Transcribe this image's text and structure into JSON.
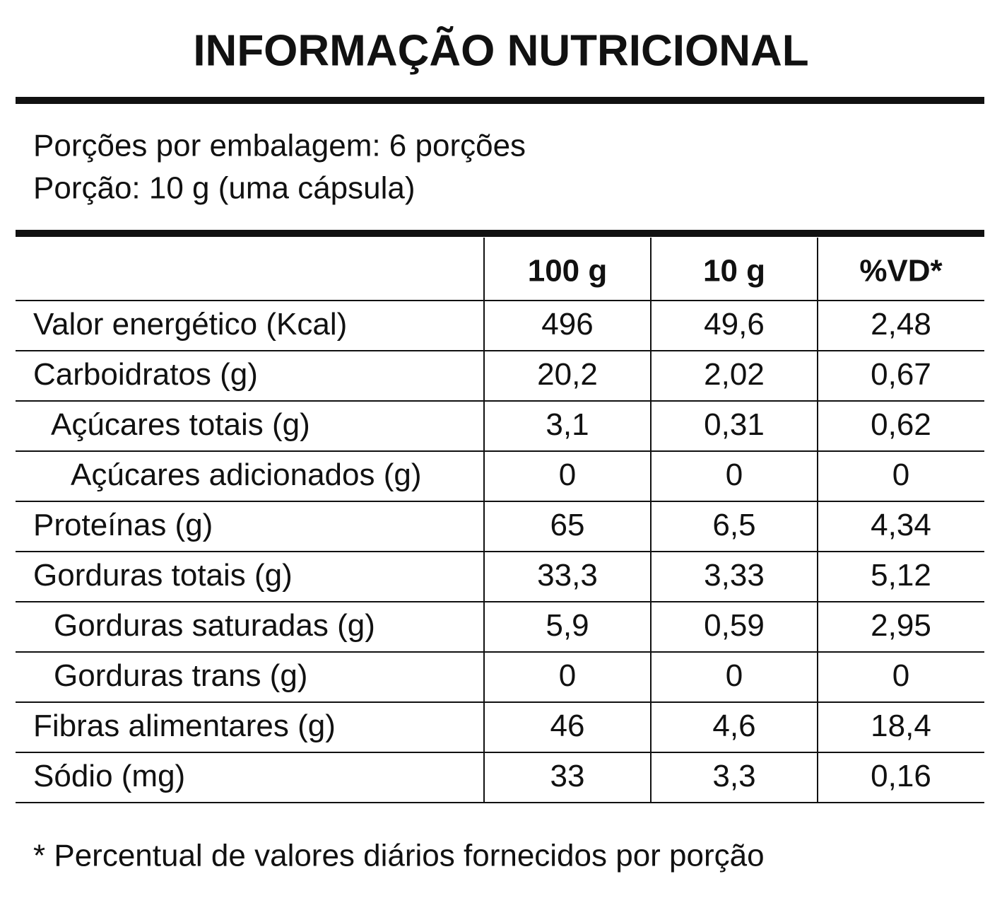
{
  "title": "INFORMAÇÃO NUTRICIONAL",
  "serving": [
    "Porções por embalagem: 6 porções",
    "Porção: 10 g (uma cápsula)"
  ],
  "table": {
    "header": [
      "100 g",
      "10 g",
      "%VD*"
    ],
    "rows": [
      [
        "Valor energético (Kcal)",
        "496",
        "49,6",
        "2,48"
      ],
      [
        "Carboidratos (g)",
        "20,2",
        "2,02",
        "0,67"
      ],
      [
        "Açúcares totais (g)",
        "3,1",
        "0,31",
        "0,62"
      ],
      [
        "Açúcares adicionados (g)",
        "0",
        "0",
        "0"
      ],
      [
        "Proteínas (g)",
        "65",
        "6,5",
        "4,34"
      ],
      [
        "Gorduras totais (g)",
        "33,3",
        "3,33",
        "5,12"
      ],
      [
        "Gorduras saturadas (g)",
        "5,9",
        "0,59",
        "2,95"
      ],
      [
        "Gorduras trans (g)",
        "0",
        "0",
        "0"
      ],
      [
        "Fibras alimentares (g)",
        "46",
        "4,6",
        "18,4"
      ],
      [
        "Sódio (mg)",
        "33",
        "3,3",
        "0,16"
      ]
    ]
  },
  "footnote": "* Percentual de valores diários fornecidos por porção"
}
